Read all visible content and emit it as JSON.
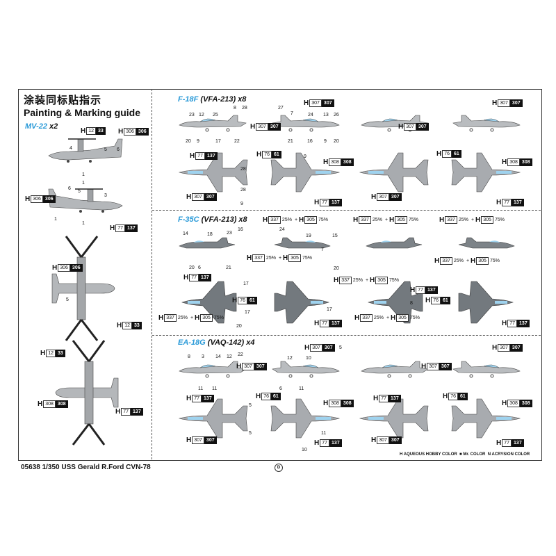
{
  "header": {
    "title_cn": "涂装同标贴指示",
    "title_en": "Painting & Marking guide"
  },
  "sections": [
    {
      "model": "MV-22",
      "detail": " x2"
    },
    {
      "model": "F-18F",
      "detail": " (VFA-213) x8"
    },
    {
      "model": "F-35C",
      "detail": " (VFA-213) x8"
    },
    {
      "model": "EA-18G",
      "detail": " (VAQ-142) x4"
    }
  ],
  "chips": [
    {
      "a": "12",
      "b": "33"
    },
    {
      "a": "306",
      "b": "306"
    },
    {
      "a": "306",
      "b": "306"
    },
    {
      "a": "77",
      "b": "137"
    },
    {
      "a": "306",
      "b": "306"
    },
    {
      "a": "12",
      "b": "33"
    },
    {
      "a": "12",
      "b": "33"
    },
    {
      "a": "308",
      "b": "308"
    },
    {
      "a": "77",
      "b": "137"
    },
    {
      "a": "307",
      "b": "307"
    },
    {
      "a": "307",
      "b": "307"
    },
    {
      "a": "77",
      "b": "137"
    },
    {
      "a": "76",
      "b": "61"
    },
    {
      "a": "308",
      "b": "308"
    },
    {
      "a": "307",
      "b": "307"
    },
    {
      "a": "77",
      "b": "137"
    },
    {
      "a": "307",
      "b": "307"
    },
    {
      "a": "307",
      "b": "307"
    },
    {
      "a": "76",
      "b": "61"
    },
    {
      "a": "308",
      "b": "308"
    },
    {
      "a": "307",
      "b": "307"
    },
    {
      "a": "77",
      "b": "137"
    },
    {
      "a": "77",
      "b": "137"
    },
    {
      "a": "76",
      "b": "61"
    },
    {
      "a": "77",
      "b": "137"
    },
    {
      "a": "77",
      "b": "137"
    },
    {
      "a": "76",
      "b": "61"
    },
    {
      "a": "77",
      "b": "137"
    },
    {
      "a": "307",
      "b": "307"
    },
    {
      "a": "307",
      "b": "307"
    },
    {
      "a": "77",
      "b": "137"
    },
    {
      "a": "76",
      "b": "61"
    },
    {
      "a": "308",
      "b": "308"
    },
    {
      "a": "307",
      "b": "307"
    },
    {
      "a": "77",
      "b": "137"
    },
    {
      "a": "307",
      "b": "307"
    },
    {
      "a": "307",
      "b": "307"
    },
    {
      "a": "77",
      "b": "137"
    },
    {
      "a": "76",
      "b": "61"
    },
    {
      "a": "308",
      "b": "308"
    },
    {
      "a": "307",
      "b": "307"
    },
    {
      "a": "77",
      "b": "137"
    }
  ],
  "mix": {
    "a": "337",
    "pa": "25%",
    "plus": "+",
    "b": "305",
    "pb": "75%"
  },
  "callouts": {
    "mv22": [
      "4",
      "5",
      "6",
      "1",
      "1",
      "6",
      "5",
      "3",
      "1",
      "1",
      "5"
    ],
    "f18_left": [
      "23",
      "12",
      "25",
      "8",
      "28",
      "20",
      "9",
      "17",
      "22",
      "28",
      "28",
      "9"
    ],
    "f18_right": [
      "27",
      "7",
      "24",
      "13",
      "26",
      "21",
      "16",
      "9",
      "20",
      "9"
    ],
    "f35": [
      "14",
      "18",
      "23",
      "16",
      "20",
      "6",
      "21",
      "24",
      "19",
      "15",
      "17",
      "17",
      "20",
      "17",
      "7",
      "20",
      "8"
    ],
    "ea18": [
      "8",
      "3",
      "14",
      "12",
      "22",
      "5",
      "11",
      "11",
      "12",
      "10",
      "11",
      "6",
      "5",
      "5",
      "11",
      "10"
    ]
  },
  "footer": {
    "text": "05638 1/350 USS  Gerald R.Ford CVN-78",
    "mark": "D"
  },
  "legend": {
    "h": "H",
    "h_text": "AQUEOUS HOBBY COLOR",
    "mr_text": "Mr. COLOR",
    "n": "N",
    "n_text": "ACRYSION COLOR"
  }
}
